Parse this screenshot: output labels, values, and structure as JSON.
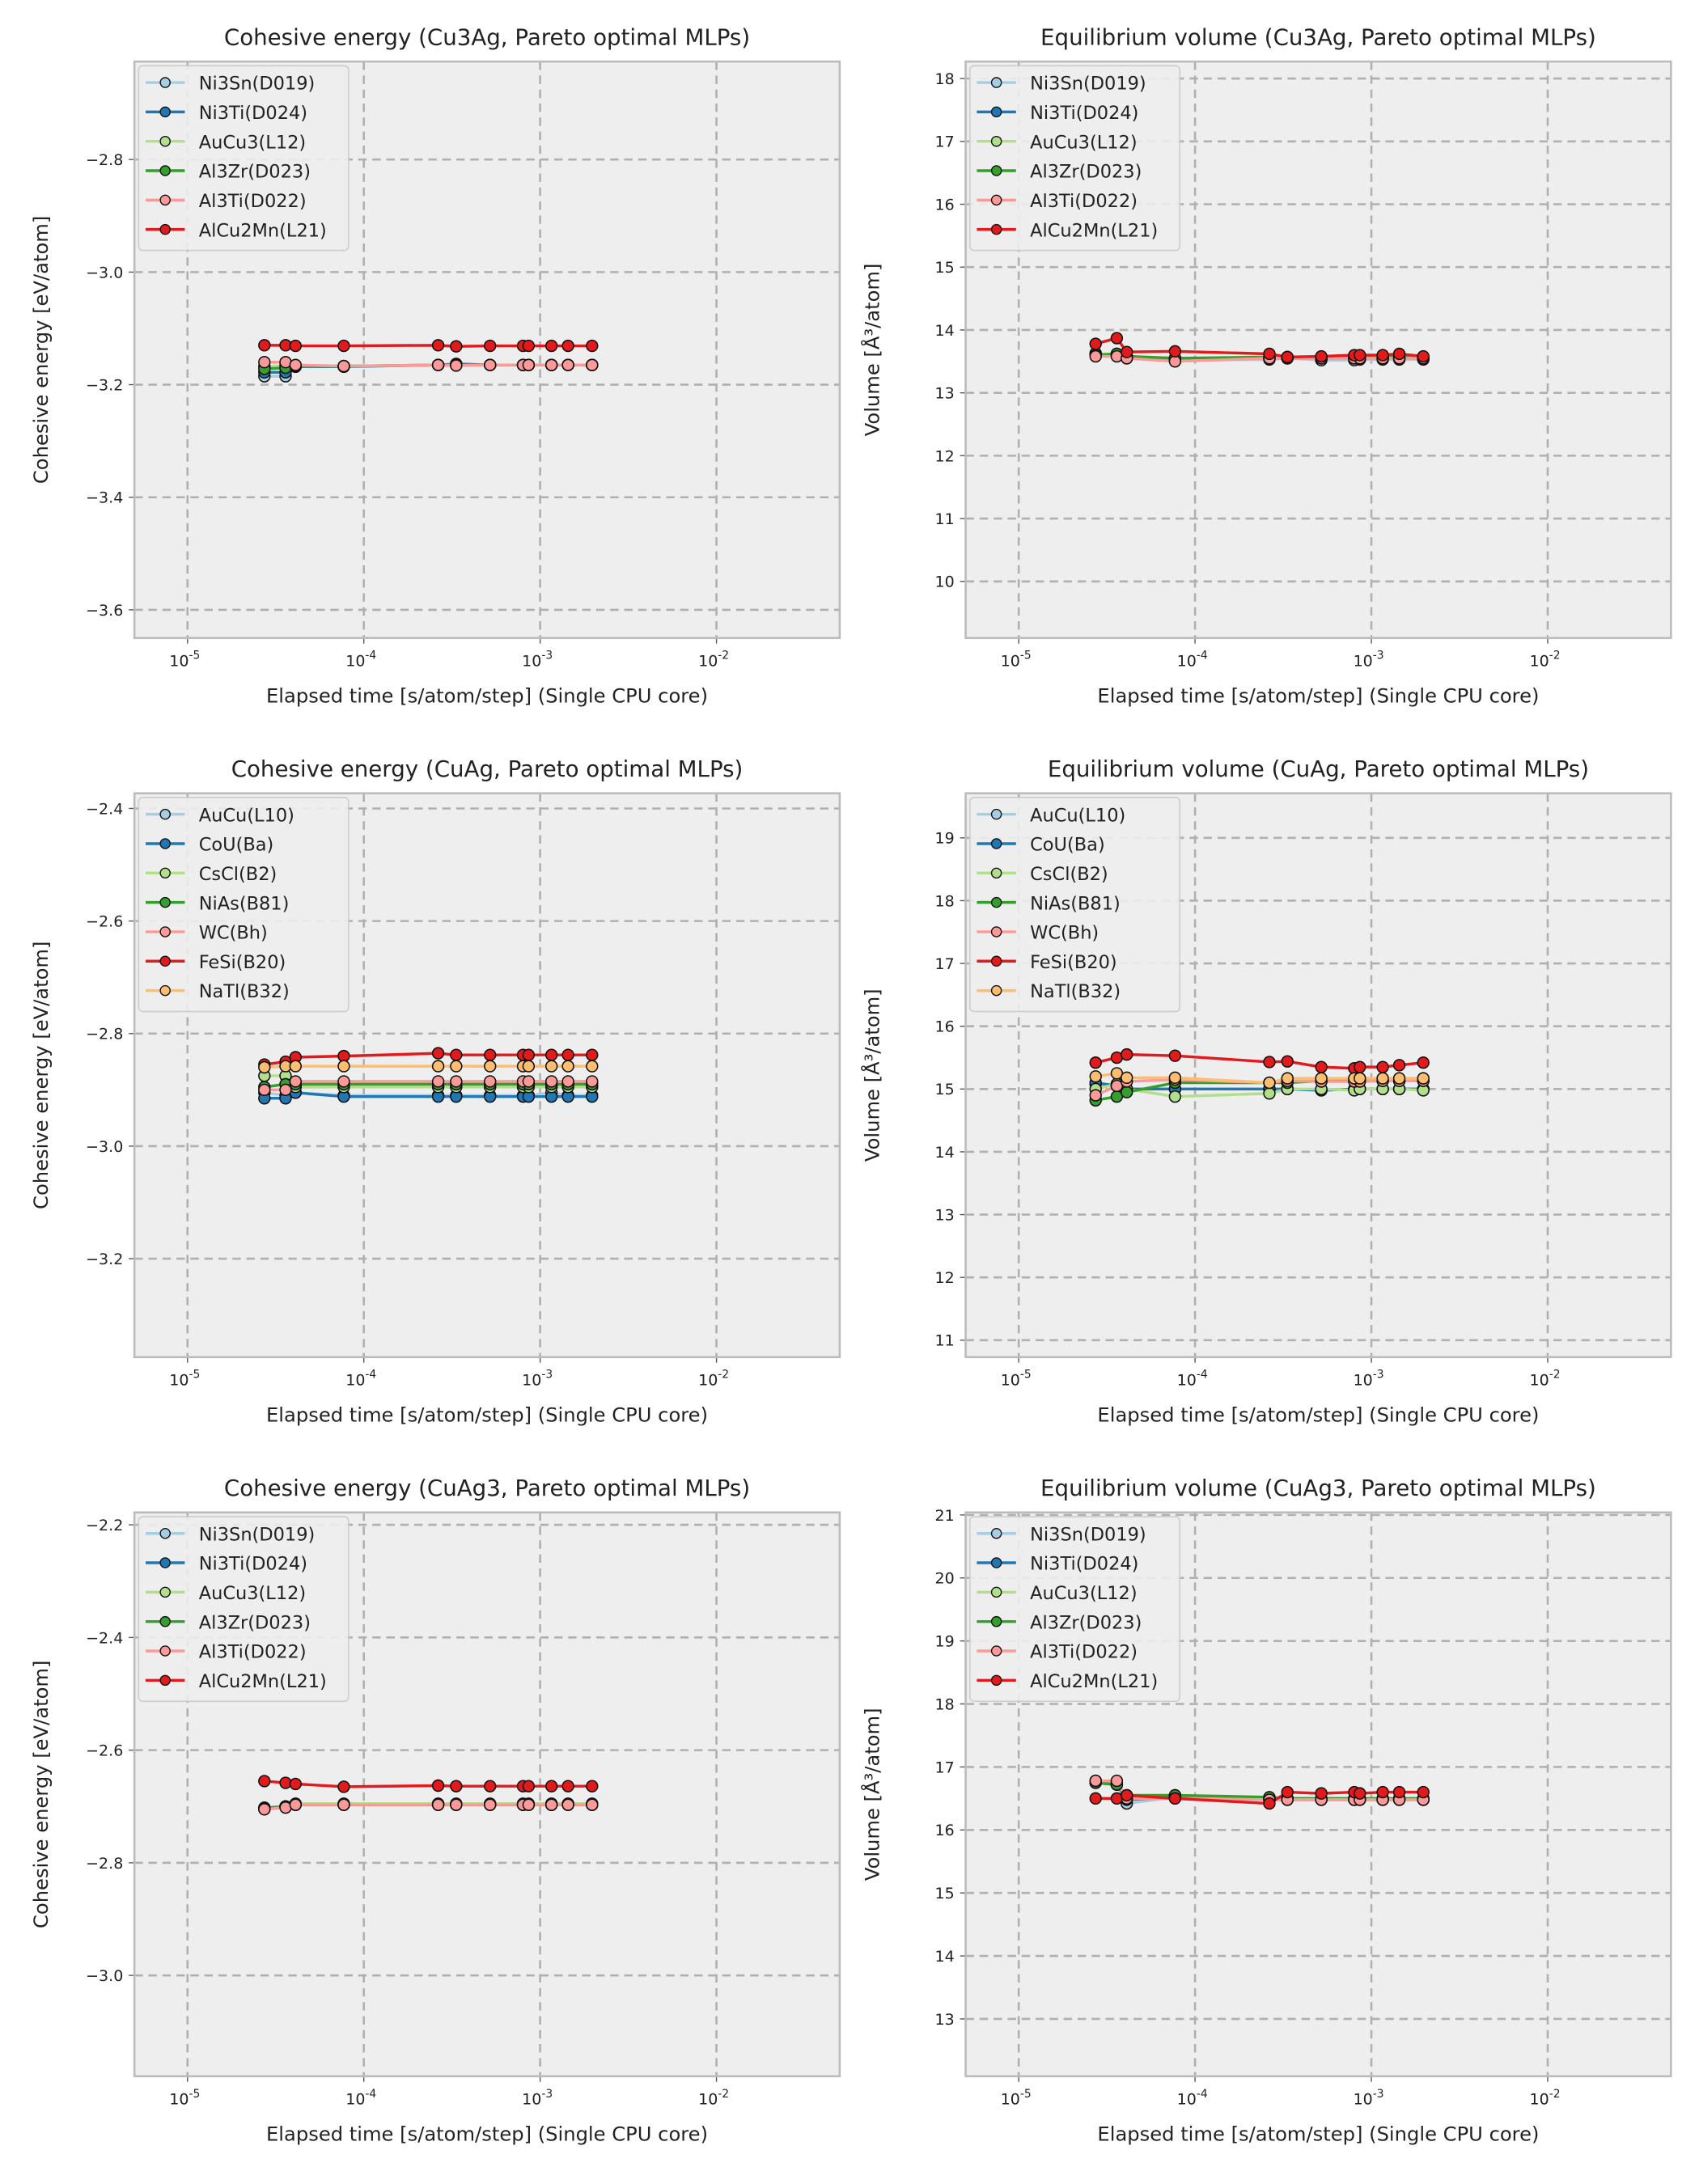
{
  "colors": {
    "c0": "#a6cee3",
    "c1": "#1f78b4",
    "c2": "#b2df8a",
    "c3": "#33a02c",
    "c4": "#fb9a99",
    "c5": "#e31a1c",
    "c6": "#fdbf6f"
  },
  "chart_data": [
    {
      "type": "line",
      "title": "Cohesive energy (Cu3Ag, Pareto optimal MLPs)",
      "xlabel": "Elapsed time [s/atom/step] (Single CPU core)",
      "ylabel": "Cohesive energy [eV/atom]",
      "xscale": "log",
      "xlim": [
        5e-06,
        0.05
      ],
      "ylim": [
        -3.65,
        -2.626
      ],
      "yticks": [
        -2.8,
        -3.0,
        -3.2,
        -3.4,
        -3.6
      ],
      "ytick_labels": [
        "−2.8",
        "−3.0",
        "−3.2",
        "−3.4",
        "−3.6"
      ],
      "xticks": [
        1e-05,
        0.0001,
        0.001,
        0.01
      ],
      "xtick_exps": [
        "-5",
        "-4",
        "-3",
        "-2"
      ],
      "grid": true,
      "legend": "top-left",
      "x": [
        2.73e-05,
        3.6e-05,
        4.1e-05,
        7.7e-05,
        0.000264,
        0.000334,
        0.00052,
        0.0008,
        0.00086,
        0.00116,
        0.00144,
        0.00197
      ],
      "series": [
        {
          "name": "Ni3Sn(D019)",
          "values": [
            -3.185,
            -3.185,
            -3.168,
            -3.168,
            -3.165,
            -3.165,
            -3.165,
            -3.165,
            -3.165,
            -3.165,
            -3.165,
            -3.165
          ]
        },
        {
          "name": "Ni3Ti(D024)",
          "values": [
            -3.178,
            -3.178,
            -3.168,
            -3.168,
            -3.165,
            -3.163,
            -3.165,
            -3.165,
            -3.165,
            -3.165,
            -3.165,
            -3.165
          ]
        },
        {
          "name": "AuCu3(L12)",
          "values": [
            -3.168,
            -3.166,
            -3.167,
            -3.167,
            -3.165,
            -3.165,
            -3.165,
            -3.165,
            -3.165,
            -3.165,
            -3.165,
            -3.165
          ]
        },
        {
          "name": "Al3Zr(D023)",
          "values": [
            -3.172,
            -3.17,
            -3.167,
            -3.167,
            -3.165,
            -3.165,
            -3.165,
            -3.165,
            -3.165,
            -3.165,
            -3.165,
            -3.165
          ]
        },
        {
          "name": "Al3Ti(D022)",
          "values": [
            -3.16,
            -3.16,
            -3.165,
            -3.167,
            -3.165,
            -3.166,
            -3.165,
            -3.165,
            -3.165,
            -3.165,
            -3.165,
            -3.165
          ]
        },
        {
          "name": "AlCu2Mn(L21)",
          "values": [
            -3.13,
            -3.13,
            -3.131,
            -3.131,
            -3.13,
            -3.132,
            -3.131,
            -3.131,
            -3.131,
            -3.131,
            -3.131,
            -3.131
          ]
        }
      ]
    },
    {
      "type": "line",
      "title": "Equilibrium volume (Cu3Ag, Pareto optimal MLPs)",
      "xlabel": "Elapsed time [s/atom/step] (Single CPU core)",
      "ylabel": "Volume [Å³/atom]",
      "xscale": "log",
      "xlim": [
        5e-06,
        0.05
      ],
      "ylim": [
        9.1,
        18.27
      ],
      "yticks": [
        10,
        11,
        12,
        13,
        14,
        15,
        16,
        17,
        18
      ],
      "ytick_labels": [
        "10",
        "11",
        "12",
        "13",
        "14",
        "15",
        "16",
        "17",
        "18"
      ],
      "xticks": [
        1e-05,
        0.0001,
        0.001,
        0.01
      ],
      "xtick_exps": [
        "-5",
        "-4",
        "-3",
        "-2"
      ],
      "grid": true,
      "legend": "top-left",
      "x": [
        2.73e-05,
        3.6e-05,
        4.1e-05,
        7.7e-05,
        0.000264,
        0.000334,
        0.00052,
        0.0008,
        0.00086,
        0.00116,
        0.00144,
        0.00197
      ],
      "series": [
        {
          "name": "Ni3Sn(D019)",
          "values": [
            13.6,
            13.62,
            13.55,
            13.52,
            13.53,
            13.55,
            13.52,
            13.52,
            13.53,
            13.53,
            13.53,
            13.53
          ]
        },
        {
          "name": "Ni3Ti(D024)",
          "values": [
            13.62,
            13.6,
            13.57,
            13.55,
            13.55,
            13.55,
            13.55,
            13.55,
            13.55,
            13.55,
            13.55,
            13.55
          ]
        },
        {
          "name": "AuCu3(L12)",
          "values": [
            13.63,
            13.6,
            13.58,
            13.55,
            13.55,
            13.55,
            13.55,
            13.55,
            13.55,
            13.55,
            13.55,
            13.55
          ]
        },
        {
          "name": "Al3Zr(D023)",
          "values": [
            13.6,
            13.62,
            13.58,
            13.55,
            13.57,
            13.57,
            13.57,
            13.57,
            13.57,
            13.57,
            13.57,
            13.57
          ]
        },
        {
          "name": "Al3Ti(D022)",
          "values": [
            13.58,
            13.58,
            13.55,
            13.5,
            13.55,
            13.55,
            13.55,
            13.55,
            13.55,
            13.55,
            13.55,
            13.55
          ]
        },
        {
          "name": "AlCu2Mn(L21)",
          "values": [
            13.78,
            13.87,
            13.65,
            13.66,
            13.62,
            13.57,
            13.58,
            13.6,
            13.6,
            13.6,
            13.62,
            13.58
          ]
        }
      ]
    },
    {
      "type": "line",
      "title": "Cohesive energy (CuAg, Pareto optimal MLPs)",
      "xlabel": "Elapsed time [s/atom/step] (Single CPU core)",
      "ylabel": "Cohesive energy [eV/atom]",
      "xscale": "log",
      "xlim": [
        5e-06,
        0.05
      ],
      "ylim": [
        -3.375,
        -2.373
      ],
      "yticks": [
        -2.4,
        -2.6,
        -2.8,
        -3.0,
        -3.2
      ],
      "ytick_labels": [
        "−2.4",
        "−2.6",
        "−2.8",
        "−3.0",
        "−3.2"
      ],
      "xticks": [
        1e-05,
        0.0001,
        0.001,
        0.01
      ],
      "xtick_exps": [
        "-5",
        "-4",
        "-3",
        "-2"
      ],
      "grid": true,
      "legend": "top-left",
      "x": [
        2.73e-05,
        3.6e-05,
        4.1e-05,
        7.7e-05,
        0.000264,
        0.000334,
        0.00052,
        0.0008,
        0.00086,
        0.00116,
        0.00144,
        0.00197
      ],
      "series": [
        {
          "name": "AuCu(L10)",
          "values": [
            -2.905,
            -2.91,
            -2.905,
            -2.91,
            -2.91,
            -2.91,
            -2.91,
            -2.91,
            -2.91,
            -2.905,
            -2.91,
            -2.91
          ]
        },
        {
          "name": "CoU(Ba)",
          "values": [
            -2.915,
            -2.915,
            -2.905,
            -2.912,
            -2.912,
            -2.912,
            -2.912,
            -2.912,
            -2.912,
            -2.912,
            -2.912,
            -2.912
          ]
        },
        {
          "name": "CsCl(B2)",
          "values": [
            -2.875,
            -2.875,
            -2.895,
            -2.895,
            -2.895,
            -2.895,
            -2.895,
            -2.895,
            -2.895,
            -2.895,
            -2.895,
            -2.895
          ]
        },
        {
          "name": "NiAs(B81)",
          "values": [
            -2.895,
            -2.89,
            -2.89,
            -2.89,
            -2.89,
            -2.89,
            -2.89,
            -2.89,
            -2.89,
            -2.89,
            -2.89,
            -2.89
          ]
        },
        {
          "name": "WC(Bh)",
          "values": [
            -2.9,
            -2.9,
            -2.885,
            -2.885,
            -2.885,
            -2.885,
            -2.885,
            -2.885,
            -2.885,
            -2.885,
            -2.885,
            -2.885
          ]
        },
        {
          "name": "FeSi(B20)",
          "values": [
            -2.855,
            -2.85,
            -2.842,
            -2.84,
            -2.835,
            -2.838,
            -2.838,
            -2.838,
            -2.838,
            -2.838,
            -2.838,
            -2.838
          ]
        },
        {
          "name": "NaTl(B32)",
          "values": [
            -2.86,
            -2.858,
            -2.858,
            -2.858,
            -2.858,
            -2.858,
            -2.858,
            -2.858,
            -2.858,
            -2.858,
            -2.858,
            -2.858
          ]
        }
      ]
    },
    {
      "type": "line",
      "title": "Equilibrium volume (CuAg, Pareto optimal MLPs)",
      "xlabel": "Elapsed time [s/atom/step] (Single CPU core)",
      "ylabel": "Volume [Å³/atom]",
      "xscale": "log",
      "xlim": [
        5e-06,
        0.05
      ],
      "ylim": [
        10.73,
        19.71
      ],
      "yticks": [
        11,
        12,
        13,
        14,
        15,
        16,
        17,
        18,
        19
      ],
      "ytick_labels": [
        "11",
        "12",
        "13",
        "14",
        "15",
        "16",
        "17",
        "18",
        "19"
      ],
      "xticks": [
        1e-05,
        0.0001,
        0.001,
        0.01
      ],
      "xtick_exps": [
        "-5",
        "-4",
        "-3",
        "-2"
      ],
      "grid": true,
      "legend": "top-left",
      "x": [
        2.73e-05,
        3.6e-05,
        4.1e-05,
        7.7e-05,
        0.000264,
        0.000334,
        0.00052,
        0.0008,
        0.00086,
        0.00116,
        0.00144,
        0.00197
      ],
      "series": [
        {
          "name": "AuCu(L10)",
          "values": [
            15.08,
            15.05,
            15.0,
            15.0,
            15.0,
            15.0,
            14.98,
            15.0,
            15.0,
            15.0,
            15.0,
            15.0
          ]
        },
        {
          "name": "CoU(Ba)",
          "values": [
            15.1,
            15.05,
            15.0,
            15.0,
            15.0,
            15.0,
            14.98,
            15.0,
            15.0,
            15.0,
            15.0,
            15.0
          ]
        },
        {
          "name": "CsCl(B2)",
          "values": [
            15.0,
            15.08,
            15.0,
            14.88,
            14.93,
            15.0,
            15.0,
            14.98,
            15.0,
            15.0,
            15.0,
            14.98
          ]
        },
        {
          "name": "NiAs(B81)",
          "values": [
            14.82,
            14.88,
            14.95,
            15.1,
            15.1,
            15.1,
            15.13,
            15.15,
            15.15,
            15.13,
            15.13,
            15.13
          ]
        },
        {
          "name": "WC(Bh)",
          "values": [
            14.9,
            15.05,
            15.12,
            15.15,
            15.1,
            15.13,
            15.12,
            15.12,
            15.12,
            15.13,
            15.13,
            15.13
          ]
        },
        {
          "name": "FeSi(B20)",
          "values": [
            15.42,
            15.5,
            15.55,
            15.53,
            15.43,
            15.44,
            15.35,
            15.33,
            15.35,
            15.35,
            15.38,
            15.42
          ]
        },
        {
          "name": "NaTl(B32)",
          "values": [
            15.2,
            15.25,
            15.18,
            15.18,
            15.1,
            15.17,
            15.17,
            15.17,
            15.17,
            15.17,
            15.17,
            15.17
          ]
        }
      ]
    },
    {
      "type": "line",
      "title": "Cohesive energy (CuAg3, Pareto optimal MLPs)",
      "xlabel": "Elapsed time [s/atom/step] (Single CPU core)",
      "ylabel": "Cohesive energy [eV/atom]",
      "xscale": "log",
      "xlim": [
        5e-06,
        0.05
      ],
      "ylim": [
        -3.179,
        -2.178
      ],
      "yticks": [
        -2.2,
        -2.4,
        -2.6,
        -2.8,
        -3.0
      ],
      "ytick_labels": [
        "−2.2",
        "−2.4",
        "−2.6",
        "−2.8",
        "−3.0"
      ],
      "xticks": [
        1e-05,
        0.0001,
        0.001,
        0.01
      ],
      "xtick_exps": [
        "-5",
        "-4",
        "-3",
        "-2"
      ],
      "grid": true,
      "legend": "top-left",
      "x": [
        2.73e-05,
        3.6e-05,
        4.1e-05,
        7.7e-05,
        0.000264,
        0.000334,
        0.00052,
        0.0008,
        0.00086,
        0.00116,
        0.00144,
        0.00197
      ],
      "series": [
        {
          "name": "Ni3Sn(D019)",
          "values": [
            -2.702,
            -2.7,
            -2.697,
            -2.697,
            -2.697,
            -2.697,
            -2.697,
            -2.697,
            -2.697,
            -2.697,
            -2.697,
            -2.697
          ]
        },
        {
          "name": "Ni3Ti(D024)",
          "values": [
            -2.703,
            -2.7,
            -2.697,
            -2.697,
            -2.697,
            -2.697,
            -2.697,
            -2.697,
            -2.697,
            -2.697,
            -2.697,
            -2.697
          ]
        },
        {
          "name": "AuCu3(L12)",
          "values": [
            -2.705,
            -2.7,
            -2.695,
            -2.695,
            -2.695,
            -2.695,
            -2.695,
            -2.695,
            -2.695,
            -2.695,
            -2.695,
            -2.695
          ]
        },
        {
          "name": "Al3Zr(D023)",
          "values": [
            -2.703,
            -2.7,
            -2.697,
            -2.697,
            -2.697,
            -2.697,
            -2.697,
            -2.697,
            -2.697,
            -2.697,
            -2.697,
            -2.697
          ]
        },
        {
          "name": "Al3Ti(D022)",
          "values": [
            -2.705,
            -2.702,
            -2.697,
            -2.697,
            -2.697,
            -2.697,
            -2.697,
            -2.697,
            -2.697,
            -2.697,
            -2.697,
            -2.697
          ]
        },
        {
          "name": "AlCu2Mn(L21)",
          "values": [
            -2.655,
            -2.658,
            -2.66,
            -2.665,
            -2.663,
            -2.664,
            -2.664,
            -2.664,
            -2.664,
            -2.664,
            -2.664,
            -2.664
          ]
        }
      ]
    },
    {
      "type": "line",
      "title": "Equilibrium volume (CuAg3, Pareto optimal MLPs)",
      "xlabel": "Elapsed time [s/atom/step] (Single CPU core)",
      "ylabel": "Volume [Å³/atom]",
      "xscale": "log",
      "xlim": [
        5e-06,
        0.05
      ],
      "ylim": [
        12.09,
        21.04
      ],
      "yticks": [
        13,
        14,
        15,
        16,
        17,
        18,
        19,
        20,
        21
      ],
      "ytick_labels": [
        "13",
        "14",
        "15",
        "16",
        "17",
        "18",
        "19",
        "20",
        "21"
      ],
      "xticks": [
        1e-05,
        0.0001,
        0.001,
        0.01
      ],
      "xtick_exps": [
        "-5",
        "-4",
        "-3",
        "-2"
      ],
      "grid": true,
      "legend": "top-left",
      "x": [
        2.73e-05,
        3.6e-05,
        4.1e-05,
        7.7e-05,
        0.000264,
        0.000334,
        0.00052,
        0.0008,
        0.00086,
        0.00116,
        0.00144,
        0.00197
      ],
      "series": [
        {
          "name": "Ni3Sn(D019)",
          "values": [
            16.75,
            16.72,
            16.42,
            16.52,
            16.48,
            16.48,
            16.48,
            16.48,
            16.48,
            16.48,
            16.48,
            16.48
          ]
        },
        {
          "name": "Ni3Ti(D024)",
          "values": [
            16.75,
            16.72,
            16.48,
            16.52,
            16.48,
            16.48,
            16.48,
            16.48,
            16.48,
            16.48,
            16.48,
            16.48
          ]
        },
        {
          "name": "AuCu3(L12)",
          "values": [
            16.78,
            16.75,
            16.5,
            16.55,
            16.5,
            16.5,
            16.48,
            16.48,
            16.48,
            16.48,
            16.48,
            16.48
          ]
        },
        {
          "name": "Al3Zr(D023)",
          "values": [
            16.75,
            16.72,
            16.55,
            16.55,
            16.52,
            16.5,
            16.5,
            16.5,
            16.5,
            16.5,
            16.5,
            16.5
          ]
        },
        {
          "name": "Al3Ti(D022)",
          "values": [
            16.78,
            16.78,
            16.5,
            16.5,
            16.48,
            16.48,
            16.48,
            16.48,
            16.48,
            16.48,
            16.48,
            16.48
          ]
        },
        {
          "name": "AlCu2Mn(L21)",
          "values": [
            16.5,
            16.5,
            16.55,
            16.5,
            16.42,
            16.6,
            16.58,
            16.6,
            16.58,
            16.6,
            16.6,
            16.6
          ]
        }
      ]
    }
  ]
}
